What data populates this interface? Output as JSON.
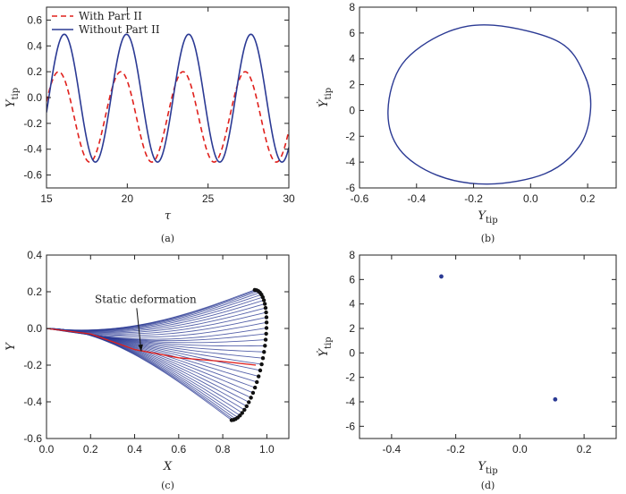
{
  "chart_data": [
    {
      "id": "a",
      "type": "line",
      "panel_label": "(a)",
      "xlabel": "τ",
      "ylabel": "Y",
      "ylabel_sub": "tip",
      "xlim": [
        15,
        30
      ],
      "ylim": [
        -0.7,
        0.7
      ],
      "xticks": [
        15,
        20,
        25,
        30
      ],
      "yticks": [
        -0.6,
        -0.4,
        -0.2,
        0.0,
        0.2,
        0.4,
        0.6
      ],
      "legend_position": "top-left",
      "grid": false,
      "series": [
        {
          "name": "With Part II",
          "style": "dashed",
          "color": "#e0201c",
          "period": 3.85,
          "max": 0.2,
          "min": -0.5,
          "first_peak_x": 15.75
        },
        {
          "name": "Without Part II",
          "style": "solid",
          "color": "#2b3a94",
          "period": 3.85,
          "max": 0.49,
          "min": -0.5,
          "first_peak_x": 16.1
        }
      ]
    },
    {
      "id": "b",
      "type": "line",
      "panel_label": "(b)",
      "xlabel": "Y",
      "xlabel_sub": "tip",
      "ylabel": "Ẏ",
      "ylabel_sub": "tip",
      "xlim": [
        -0.6,
        0.3
      ],
      "ylim": [
        -6,
        8
      ],
      "xticks": [
        -0.6,
        -0.4,
        -0.2,
        0.0,
        0.2
      ],
      "yticks": [
        -6,
        -4,
        -2,
        0,
        2,
        4,
        6,
        8
      ],
      "grid": false,
      "series": [
        {
          "color": "#2b3a94",
          "closed": true,
          "points": [
            [
              0.21,
              0.0
            ],
            [
              0.19,
              2.7
            ],
            [
              0.1,
              5.3
            ],
            [
              -0.13,
              6.6
            ],
            [
              -0.3,
              6.0
            ],
            [
              -0.45,
              3.6
            ],
            [
              -0.5,
              0.0
            ],
            [
              -0.46,
              -3.0
            ],
            [
              -0.33,
              -5.0
            ],
            [
              -0.15,
              -5.7
            ],
            [
              0.05,
              -4.9
            ],
            [
              0.17,
              -2.8
            ]
          ]
        }
      ]
    },
    {
      "id": "c",
      "type": "line",
      "panel_label": "(c)",
      "xlabel": "X",
      "ylabel": "Y",
      "xlim": [
        0.0,
        1.1
      ],
      "ylim": [
        -0.6,
        0.4
      ],
      "xticks": [
        0.0,
        0.2,
        0.4,
        0.6,
        0.8,
        1.0
      ],
      "yticks": [
        -0.6,
        -0.4,
        -0.2,
        0.0,
        0.2,
        0.4
      ],
      "annotation": {
        "text": "Static deformation",
        "text_at": [
          0.45,
          0.14
        ],
        "arrow_to": [
          0.43,
          -0.125
        ]
      },
      "grid": false,
      "beam_envelope": {
        "color": "#2b3a94",
        "tip_upper": [
          0.945,
          0.21
        ],
        "tip_lower": [
          0.84,
          -0.5
        ],
        "tip_right": [
          0.985,
          -0.16
        ],
        "static_line": {
          "color": "#e0201c",
          "points": [
            [
              0.0,
              0.0
            ],
            [
              0.2,
              -0.03
            ],
            [
              0.4,
              -0.115
            ],
            [
              0.6,
              -0.16
            ],
            [
              0.8,
              -0.18
            ],
            [
              0.95,
              -0.2
            ]
          ]
        }
      }
    },
    {
      "id": "d",
      "type": "scatter",
      "panel_label": "(d)",
      "xlabel": "Y",
      "xlabel_sub": "tip",
      "ylabel": "Ẏ",
      "ylabel_sub": "tip",
      "xlim": [
        -0.5,
        0.3
      ],
      "ylim": [
        -7,
        8
      ],
      "xticks": [
        -0.4,
        -0.2,
        0.0,
        0.2
      ],
      "yticks": [
        -6,
        -4,
        -2,
        0,
        2,
        4,
        6,
        8
      ],
      "grid": false,
      "series": [
        {
          "color": "#2b3a94",
          "points": [
            [
              -0.245,
              6.25
            ],
            [
              0.11,
              -3.8
            ]
          ]
        }
      ]
    }
  ]
}
